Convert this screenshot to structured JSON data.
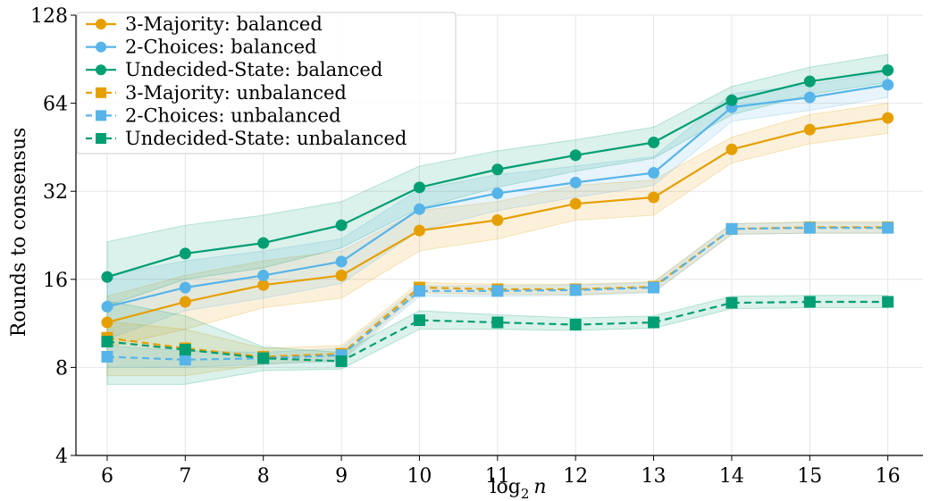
{
  "chart_data": {
    "type": "line",
    "title": "",
    "xlabel": "log",
    "xlabel_sub": "2",
    "xlabel_var": "n",
    "ylabel": "Rounds to consensus",
    "y_scale": "log2",
    "ylim": [
      4,
      128
    ],
    "xlim": [
      5.6,
      16.45
    ],
    "x_ticks": [
      "6",
      "7",
      "8",
      "9",
      "10",
      "11",
      "12",
      "13",
      "14",
      "15",
      "16"
    ],
    "y_ticks": [
      "4",
      "8",
      "16",
      "32",
      "64",
      "128"
    ],
    "grid": true,
    "legend_position": "top-left",
    "x": [
      6,
      7,
      8,
      9,
      10,
      11,
      12,
      13,
      14,
      15,
      16
    ],
    "series": [
      {
        "name": "3-Majority: balanced",
        "color": "#E69F00",
        "marker": "circle",
        "dash": "solid",
        "values": [
          11.4,
          13.4,
          15.3,
          16.5,
          23.5,
          25.5,
          29.0,
          30.5,
          44.5,
          52.0,
          57.0
        ],
        "lower": [
          9.4,
          10.8,
          12.8,
          13.8,
          20.0,
          22.0,
          25.5,
          26.5,
          40.0,
          46.5,
          50.5
        ],
        "upper": [
          14.0,
          16.5,
          18.5,
          20.0,
          27.5,
          29.5,
          33.5,
          35.0,
          49.0,
          58.5,
          64.0
        ]
      },
      {
        "name": "2-Choices: balanced",
        "color": "#56B4E9",
        "marker": "circle",
        "dash": "solid",
        "values": [
          12.9,
          15.0,
          16.5,
          18.4,
          27.8,
          31.5,
          34.3,
          37.0,
          62.0,
          67.0,
          74.0
        ],
        "lower": [
          10.0,
          12.5,
          13.8,
          15.5,
          23.5,
          27.5,
          30.5,
          33.5,
          55.5,
          60.5,
          67.0
        ],
        "upper": [
          16.5,
          18.5,
          20.0,
          22.0,
          32.5,
          36.5,
          39.0,
          42.0,
          69.0,
          74.0,
          82.0
        ]
      },
      {
        "name": "Undecided-State: balanced",
        "color": "#009E73",
        "marker": "circle",
        "dash": "solid",
        "values": [
          16.3,
          19.6,
          21.3,
          24.5,
          33.0,
          38.0,
          42.5,
          47.0,
          65.5,
          76.0,
          83.0
        ],
        "lower": [
          13.0,
          16.0,
          17.5,
          20.5,
          28.0,
          33.0,
          37.5,
          41.5,
          58.5,
          68.5,
          75.5
        ],
        "upper": [
          21.5,
          24.5,
          26.5,
          29.5,
          39.0,
          44.0,
          48.0,
          53.0,
          73.0,
          85.0,
          94.0
        ]
      },
      {
        "name": "3-Majority: unbalanced",
        "color": "#E69F00",
        "marker": "square",
        "dash": "dashed",
        "values": [
          10.1,
          9.3,
          8.7,
          8.9,
          15.0,
          14.8,
          14.8,
          15.1,
          23.8,
          24.1,
          24.1
        ],
        "lower": [
          7.5,
          7.5,
          8.2,
          8.5,
          14.4,
          14.2,
          14.2,
          14.5,
          22.8,
          23.0,
          23.0
        ],
        "upper": [
          11.5,
          10.8,
          9.3,
          9.5,
          15.6,
          15.4,
          15.4,
          15.7,
          24.8,
          25.2,
          25.2
        ]
      },
      {
        "name": "2-Choices: unbalanced",
        "color": "#56B4E9",
        "marker": "square",
        "dash": "dashed",
        "values": [
          8.7,
          8.5,
          8.6,
          8.8,
          14.6,
          14.6,
          14.7,
          15.0,
          23.8,
          24.0,
          24.0
        ],
        "lower": [
          8.0,
          8.0,
          8.2,
          8.4,
          14.0,
          14.0,
          14.1,
          14.4,
          22.8,
          23.0,
          23.0
        ],
        "upper": [
          9.5,
          9.1,
          9.0,
          9.3,
          15.2,
          15.2,
          15.3,
          15.6,
          24.8,
          25.0,
          25.0
        ]
      },
      {
        "name": "Undecided-State: unbalanced",
        "color": "#009E73",
        "marker": "square",
        "dash": "dashed",
        "values": [
          9.8,
          9.2,
          8.6,
          8.4,
          11.6,
          11.4,
          11.2,
          11.4,
          13.3,
          13.4,
          13.4
        ],
        "lower": [
          7.0,
          7.0,
          7.8,
          7.9,
          10.8,
          10.8,
          10.7,
          10.9,
          12.7,
          12.8,
          12.8
        ],
        "upper": [
          13.5,
          12.0,
          9.4,
          9.0,
          12.5,
          12.1,
          11.8,
          12.0,
          14.0,
          14.1,
          14.1
        ]
      }
    ]
  }
}
